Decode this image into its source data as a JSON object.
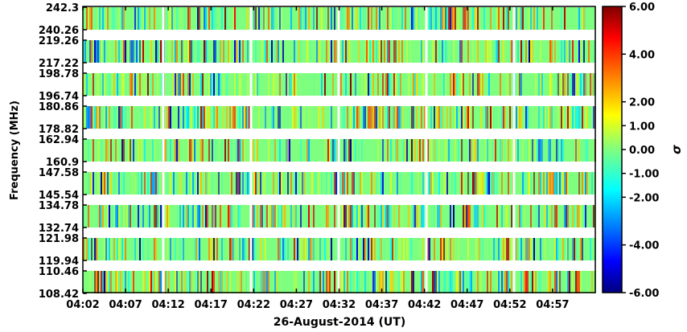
{
  "chart_data": {
    "type": "heatmap",
    "title": "",
    "xlabel": "26-August-2014 (UT)",
    "ylabel": "Frequency (MHz)",
    "x_tick_labels": [
      "04:02",
      "04:07",
      "04:12",
      "04:17",
      "04:22",
      "04:27",
      "04:32",
      "04:37",
      "04:42",
      "04:47",
      "04:52",
      "04:57"
    ],
    "xlim_minutes": [
      0,
      60
    ],
    "frequency_bands": [
      {
        "low": "240.26",
        "high": "242.3"
      },
      {
        "low": "217.22",
        "high": "219.26"
      },
      {
        "low": "196.74",
        "high": "198.78"
      },
      {
        "low": "178.82",
        "high": "180.86"
      },
      {
        "low": "160.9",
        "high": "162.94"
      },
      {
        "low": "145.54",
        "high": "147.58"
      },
      {
        "low": "132.74",
        "high": "134.78"
      },
      {
        "low": "119.94",
        "high": "121.98"
      },
      {
        "low": "108.42",
        "high": "110.46"
      }
    ],
    "colorbar": {
      "label": "σ",
      "min": -6.0,
      "max": 6.0,
      "tick_labels": [
        "6.00",
        "4.00",
        "2.00",
        "1.00",
        "0.00",
        "-1.00",
        "-2.00",
        "-4.00",
        "-6.00"
      ],
      "tick_values": [
        6,
        4,
        2,
        1,
        0,
        -1,
        -2,
        -4,
        -6
      ],
      "colormap": "jet"
    }
  }
}
